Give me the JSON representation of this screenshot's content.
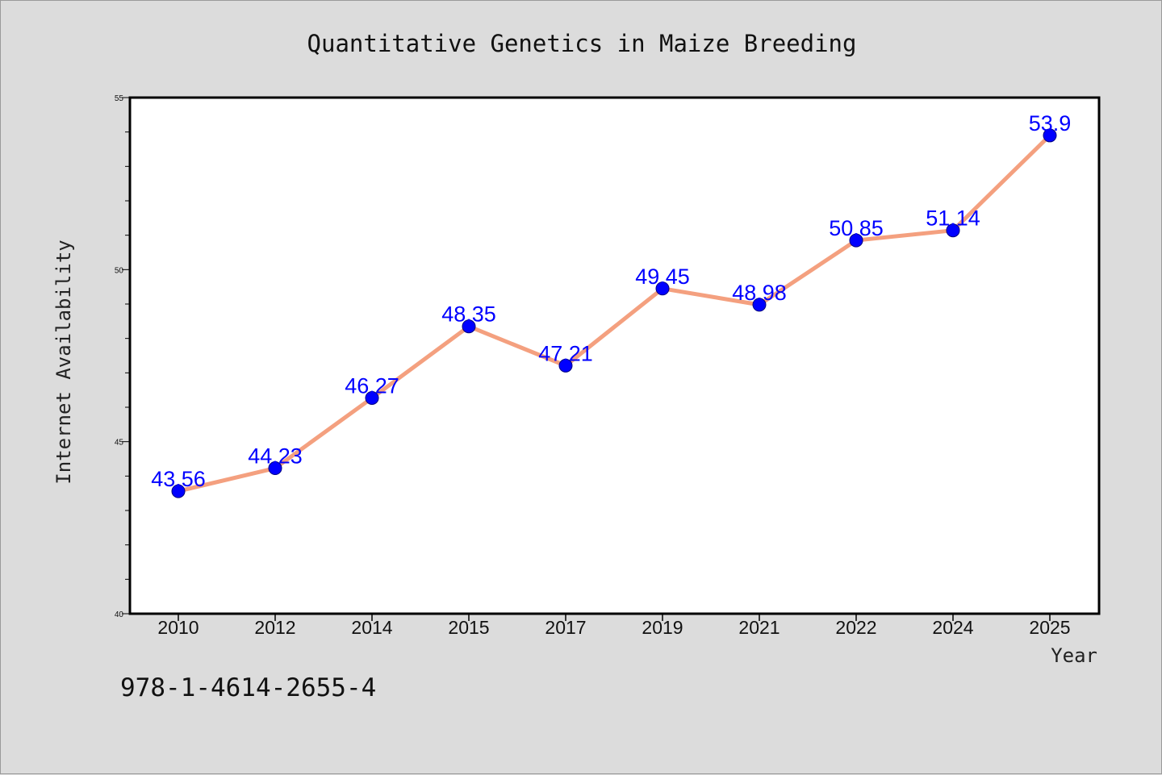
{
  "chart_data": {
    "type": "line",
    "title": "Quantitative Genetics in Maize Breeding",
    "xlabel": "Year",
    "ylabel": "Internet Availability",
    "categories": [
      "2010",
      "2012",
      "2014",
      "2015",
      "2017",
      "2019",
      "2021",
      "2022",
      "2024",
      "2025"
    ],
    "series": [
      {
        "values": [
          43.56,
          44.23,
          46.27,
          48.35,
          47.21,
          49.45,
          48.98,
          50.85,
          51.14,
          53.9
        ]
      }
    ],
    "data_labels": [
      "43.56",
      "44.23",
      "46.27",
      "48.35",
      "47.21",
      "49.45",
      "48.98",
      "50.85",
      "51.14",
      "53.9"
    ],
    "ylim": [
      40,
      55
    ],
    "yticks": [
      40,
      45,
      50,
      55
    ],
    "grid": false,
    "legend": "none",
    "colors": {
      "line": "#f4a07f",
      "marker": "#0000ff",
      "label": "#0000ff",
      "background": "#dcdcdc",
      "plot_bg": "#ffffff"
    }
  },
  "footer": {
    "isbn": "978-1-4614-2655-4"
  }
}
